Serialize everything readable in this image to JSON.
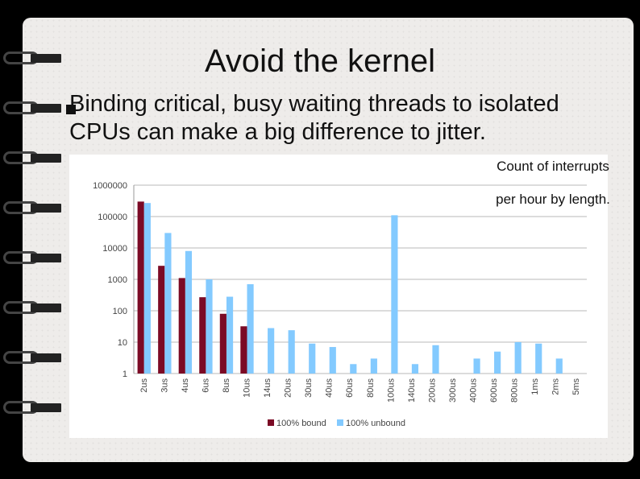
{
  "slide": {
    "title": "Avoid the kernel",
    "subtitle": "Binding critical, busy waiting threads to isolated CPUs can make a big difference to jitter.",
    "note_line1": "Count of interrupts",
    "note_line2": "per hour by length."
  },
  "chart_data": {
    "type": "bar",
    "yscale": "log",
    "ylim": [
      1,
      1000000
    ],
    "yticks": [
      "1000000",
      "100000",
      "10000",
      "1000",
      "100",
      "10",
      "1"
    ],
    "categories": [
      "2us",
      "3us",
      "4us",
      "6us",
      "8us",
      "10us",
      "14us",
      "20us",
      "30us",
      "40us",
      "60us",
      "80us",
      "100us",
      "140us",
      "200us",
      "300us",
      "400us",
      "600us",
      "800us",
      "1ms",
      "2ms",
      "5ms"
    ],
    "series": [
      {
        "name": "100% bound",
        "color": "#7b0a25",
        "values": [
          300000,
          2700,
          1100,
          270,
          80,
          32,
          null,
          null,
          null,
          null,
          null,
          null,
          null,
          null,
          null,
          null,
          null,
          null,
          null,
          null,
          null,
          null
        ]
      },
      {
        "name": "100% unbound",
        "color": "#83caff",
        "values": [
          270000,
          30000,
          8000,
          1000,
          280,
          700,
          28,
          24,
          9,
          7,
          2,
          3,
          110000,
          2,
          8,
          null,
          3,
          5,
          10,
          9,
          3,
          null
        ]
      }
    ],
    "grid": true,
    "legend": "bottom"
  }
}
